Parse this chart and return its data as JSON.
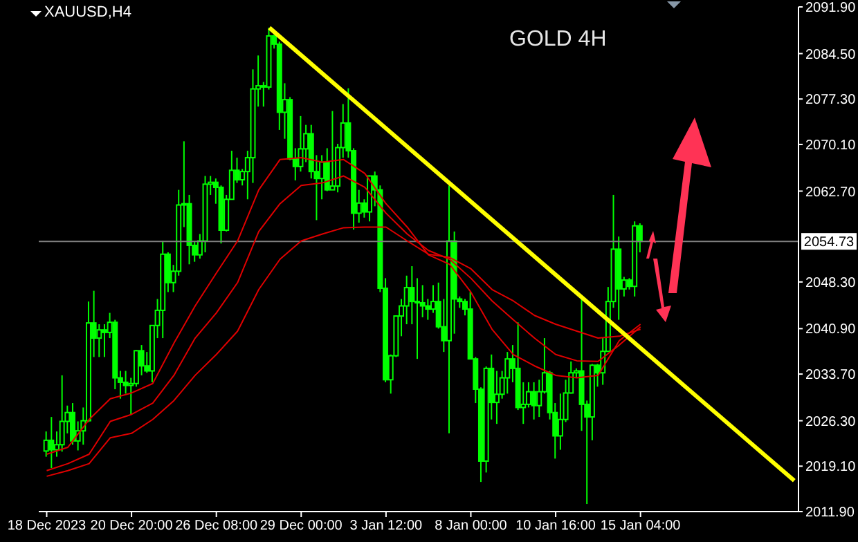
{
  "chart_data": {
    "type": "candlestick",
    "title": "GOLD 4H",
    "subtitle": "XAUUSD,H4",
    "color": "#00ff00",
    "categories": [
      "18 Dec 2023",
      null,
      null,
      null,
      null,
      null,
      null,
      null,
      null,
      null,
      null,
      null,
      null,
      null,
      null,
      null,
      "20 Dec 20:00",
      null,
      null,
      null,
      null,
      null,
      null,
      null,
      null,
      null,
      null,
      null,
      null,
      null,
      null,
      null,
      "26 Dec 08:00",
      null,
      null,
      null,
      null,
      null,
      null,
      null,
      null,
      null,
      null,
      null,
      null,
      null,
      null,
      null,
      "29 Dec 00:00",
      null,
      null,
      null,
      null,
      null,
      null,
      null,
      null,
      null,
      null,
      null,
      null,
      null,
      null,
      null,
      "3 Jan 12:00",
      null,
      null,
      null,
      null,
      null,
      null,
      null,
      null,
      null,
      null,
      null,
      null,
      null,
      null,
      null,
      "8 Jan 00:00",
      null,
      null,
      null,
      null,
      null,
      null,
      null,
      null,
      null,
      null,
      null,
      null,
      null,
      null,
      null,
      "10 Jan 16:00",
      null,
      null,
      null,
      null,
      null,
      null,
      null,
      null,
      null,
      null,
      null,
      null,
      null,
      null,
      null,
      "15 Jan 04:00",
      null,
      null,
      null,
      null,
      null,
      null,
      null,
      null,
      null,
      null,
      null,
      null,
      null,
      null,
      null,
      null,
      null,
      null,
      null,
      null,
      null,
      null,
      null,
      null,
      null,
      null,
      null,
      null,
      null
    ],
    "ohlc": [
      [
        2021.5,
        2024.6,
        2020.6,
        2023.2
      ],
      [
        2023.2,
        2026.9,
        2018.8,
        2021.7
      ],
      [
        2021.7,
        2024.6,
        2020.6,
        2022.5
      ],
      [
        2022.5,
        2033.5,
        2021.4,
        2026.2
      ],
      [
        2026.2,
        2028.7,
        2024.3,
        2027.6
      ],
      [
        2027.6,
        2029.1,
        2022.5,
        2023.1
      ],
      [
        2023.1,
        2026.2,
        2021.6,
        2024.7
      ],
      [
        2024.7,
        2028.4,
        2022.5,
        2026.3
      ],
      [
        2026.3,
        2045.2,
        2026.1,
        2041.8
      ],
      [
        2041.8,
        2046.9,
        2036.4,
        2039.4
      ],
      [
        2039.4,
        2041.6,
        2036.4,
        2040.7
      ],
      [
        2040.7,
        2041.6,
        2036.4,
        2040.3
      ],
      [
        2040.3,
        2043.4,
        2039.4,
        2041.9
      ],
      [
        2041.9,
        2042.3,
        2031.3,
        2033.1
      ],
      [
        2033.1,
        2034.2,
        2029.8,
        2032.4
      ],
      [
        2032.4,
        2034.2,
        2030.6,
        2031.9
      ],
      [
        2031.9,
        2033.1,
        2027.3,
        2032.2
      ],
      [
        2032.2,
        2037.5,
        2031.7,
        2037.4
      ],
      [
        2037.4,
        2038.3,
        2033.5,
        2035.0
      ],
      [
        2035.0,
        2037.2,
        2033.9,
        2034.2
      ],
      [
        2034.2,
        2041.4,
        2032.4,
        2041.4
      ],
      [
        2041.4,
        2045.6,
        2039.4,
        2043.8
      ],
      [
        2043.8,
        2054.8,
        2039.4,
        2052.7
      ],
      [
        2052.7,
        2053.0,
        2046.7,
        2048.2
      ],
      [
        2048.2,
        2051.0,
        2046.7,
        2050.0
      ],
      [
        2050.0,
        2062.9,
        2049.3,
        2060.5
      ],
      [
        2060.5,
        2070.6,
        2057.0,
        2060.7
      ],
      [
        2060.7,
        2062.1,
        2051.1,
        2054.1
      ],
      [
        2054.1,
        2054.8,
        2051.5,
        2052.6
      ],
      [
        2052.6,
        2055.9,
        2052.0,
        2054.8
      ],
      [
        2054.8,
        2065.1,
        2053.0,
        2063.8
      ],
      [
        2063.8,
        2065.1,
        2062.1,
        2064.1
      ],
      [
        2064.1,
        2064.7,
        2060.7,
        2063.3
      ],
      [
        2063.3,
        2063.6,
        2054.4,
        2056.5
      ],
      [
        2056.5,
        2062.1,
        2056.3,
        2061.4
      ],
      [
        2061.4,
        2069.1,
        2061.4,
        2066.0
      ],
      [
        2066.0,
        2068.0,
        2064.0,
        2064.5
      ],
      [
        2064.5,
        2066.2,
        2063.6,
        2065.8
      ],
      [
        2065.8,
        2069.1,
        2061.4,
        2068.0
      ],
      [
        2068.0,
        2082.0,
        2064.0,
        2078.9
      ],
      [
        2078.9,
        2084.2,
        2076.1,
        2079.4
      ],
      [
        2079.4,
        2080.0,
        2076.1,
        2079.2
      ],
      [
        2079.2,
        2088.6,
        2078.8,
        2087.3
      ],
      [
        2087.3,
        2087.5,
        2085.3,
        2086.0
      ],
      [
        2086.0,
        2086.4,
        2072.4,
        2075.2
      ],
      [
        2075.2,
        2079.8,
        2071.0,
        2077.2
      ],
      [
        2077.2,
        2077.6,
        2067.6,
        2067.8
      ],
      [
        2067.8,
        2069.5,
        2064.4,
        2066.6
      ],
      [
        2066.6,
        2074.6,
        2065.8,
        2069.4
      ],
      [
        2069.4,
        2073.2,
        2067.3,
        2071.8
      ],
      [
        2071.8,
        2073.2,
        2064.7,
        2065.8
      ],
      [
        2065.8,
        2068.4,
        2058.1,
        2064.7
      ],
      [
        2064.7,
        2068.4,
        2061.4,
        2067.3
      ],
      [
        2067.3,
        2069.5,
        2062.7,
        2062.9
      ],
      [
        2062.9,
        2075.4,
        2062.9,
        2063.5
      ],
      [
        2063.5,
        2070.2,
        2062.5,
        2069.6
      ],
      [
        2069.6,
        2076.5,
        2068.0,
        2073.5
      ],
      [
        2073.5,
        2079.0,
        2068.0,
        2069.1
      ],
      [
        2069.1,
        2069.5,
        2056.6,
        2059.2
      ],
      [
        2059.2,
        2062.9,
        2057.7,
        2060.8
      ],
      [
        2060.8,
        2061.4,
        2058.5,
        2059.4
      ],
      [
        2059.4,
        2065.2,
        2057.9,
        2065.1
      ],
      [
        2065.1,
        2065.8,
        2060.3,
        2062.9
      ],
      [
        2062.9,
        2063.6,
        2046.7,
        2047.3
      ],
      [
        2047.3,
        2048.9,
        2032.4,
        2032.8
      ],
      [
        2032.8,
        2036.8,
        2030.6,
        2036.6
      ],
      [
        2036.6,
        2043.0,
        2036.4,
        2042.9
      ],
      [
        2042.9,
        2045.6,
        2039.7,
        2044.5
      ],
      [
        2044.5,
        2049.3,
        2041.6,
        2047.4
      ],
      [
        2047.4,
        2050.8,
        2041.6,
        2045.2
      ],
      [
        2045.2,
        2048.9,
        2036.1,
        2045.0
      ],
      [
        2045.0,
        2047.8,
        2042.7,
        2044.5
      ],
      [
        2044.5,
        2045.6,
        2042.3,
        2044.0
      ],
      [
        2044.0,
        2047.8,
        2043.4,
        2045.2
      ],
      [
        2045.2,
        2048.2,
        2040.9,
        2041.2
      ],
      [
        2041.2,
        2045.6,
        2037.2,
        2039.0
      ],
      [
        2039.0,
        2063.6,
        2024.3,
        2054.8
      ],
      [
        2054.8,
        2056.3,
        2040.1,
        2045.6
      ],
      [
        2045.6,
        2046.0,
        2044.2,
        2045.2
      ],
      [
        2045.2,
        2045.6,
        2043.0,
        2044.0
      ],
      [
        2044.0,
        2046.7,
        2036.1,
        2036.1
      ],
      [
        2036.1,
        2036.4,
        2029.1,
        2031.3
      ],
      [
        2031.3,
        2031.6,
        2016.6,
        2019.9
      ],
      [
        2019.9,
        2034.9,
        2018.1,
        2034.6
      ],
      [
        2034.6,
        2036.8,
        2026.5,
        2029.2
      ],
      [
        2029.2,
        2034.2,
        2025.8,
        2030.5
      ],
      [
        2030.5,
        2034.2,
        2029.8,
        2033.1
      ],
      [
        2033.1,
        2037.2,
        2030.6,
        2036.1
      ],
      [
        2036.1,
        2038.3,
        2032.4,
        2034.6
      ],
      [
        2034.6,
        2041.9,
        2028.0,
        2028.4
      ],
      [
        2028.4,
        2032.4,
        2025.8,
        2028.9
      ],
      [
        2028.9,
        2032.4,
        2028.4,
        2030.9
      ],
      [
        2030.9,
        2032.4,
        2026.5,
        2028.7
      ],
      [
        2028.7,
        2032.8,
        2026.9,
        2030.9
      ],
      [
        2030.9,
        2039.4,
        2030.6,
        2033.9
      ],
      [
        2033.9,
        2034.2,
        2026.5,
        2027.6
      ],
      [
        2027.6,
        2029.1,
        2020.3,
        2023.9
      ],
      [
        2023.9,
        2030.6,
        2021.7,
        2026.5
      ],
      [
        2026.5,
        2032.8,
        2026.1,
        2030.7
      ],
      [
        2030.7,
        2035.7,
        2030.6,
        2033.9
      ],
      [
        2033.9,
        2034.6,
        2033.1,
        2034.2
      ],
      [
        2034.2,
        2046.0,
        2024.7,
        2028.9
      ],
      [
        2028.9,
        2029.5,
        2013.1,
        2026.9
      ],
      [
        2026.9,
        2035.3,
        2023.2,
        2035.1
      ],
      [
        2035.1,
        2035.3,
        2031.7,
        2033.9
      ],
      [
        2033.9,
        2039.4,
        2032.0,
        2037.3
      ],
      [
        2037.3,
        2047.5,
        2037.2,
        2045.2
      ],
      [
        2045.2,
        2062.1,
        2044.2,
        2053.5
      ],
      [
        2053.5,
        2055.5,
        2042.3,
        2047.2
      ],
      [
        2047.2,
        2049.1,
        2046.0,
        2048.6
      ],
      [
        2048.6,
        2048.9,
        2047.1,
        2047.6
      ],
      [
        2047.6,
        2057.9,
        2046.0,
        2057.2
      ],
      [
        2057.2,
        2057.6,
        2053.0,
        2054.73
      ],
      null,
      null,
      null,
      null,
      null,
      null,
      null,
      null,
      null,
      null,
      null,
      null,
      null,
      null,
      null,
      null,
      null,
      null,
      null,
      null,
      null,
      null,
      null,
      null,
      null,
      null,
      null,
      null,
      null
    ],
    "series": [
      {
        "type": "line",
        "color": "#e00000",
        "values": [
          2021.0,
          null,
          null,
          null,
          2022.1,
          null,
          null,
          null,
          2026.5,
          null,
          null,
          null,
          2029.8,
          null,
          null,
          null,
          2030.7,
          null,
          null,
          null,
          2032.2,
          null,
          null,
          null,
          2038.6,
          null,
          null,
          null,
          2044.5,
          null,
          null,
          null,
          2049.7,
          null,
          null,
          null,
          2054.8,
          null,
          null,
          null,
          2062.9,
          null,
          null,
          null,
          2067.7,
          null,
          null,
          null,
          2068.0,
          null,
          null,
          null,
          2067.3,
          null,
          null,
          null,
          2067.7,
          null,
          null,
          null,
          2065.5,
          null,
          null,
          null,
          2060.7,
          null,
          null,
          null,
          2057.0,
          null,
          null,
          null,
          2052.6,
          null,
          null,
          null,
          2051.1,
          null,
          null,
          null,
          2046.7,
          null,
          null,
          null,
          2040.8,
          null,
          null,
          null,
          2036.8,
          null,
          null,
          null,
          2035.0,
          null,
          null,
          null,
          2033.5,
          null,
          null,
          null,
          2033.1,
          null,
          null,
          null,
          2033.5,
          null,
          null,
          null,
          2039.0,
          null,
          null,
          null,
          2041.6,
          null,
          null,
          null,
          null,
          null,
          null,
          null,
          null,
          null,
          null,
          null,
          null,
          null,
          null,
          null,
          null,
          null,
          null,
          null,
          null,
          null,
          null,
          null,
          null,
          null,
          null,
          null,
          null,
          null
        ]
      },
      {
        "type": "line",
        "color": "#e00000",
        "values": [
          2018.4,
          null,
          null,
          null,
          2019.5,
          null,
          null,
          null,
          2021.0,
          null,
          null,
          null,
          2026.2,
          null,
          null,
          null,
          2027.3,
          null,
          null,
          null,
          2029.1,
          null,
          null,
          null,
          2033.5,
          null,
          null,
          null,
          2039.4,
          null,
          null,
          null,
          2043.4,
          null,
          null,
          null,
          2048.2,
          null,
          null,
          null,
          2056.3,
          null,
          null,
          null,
          2060.7,
          null,
          null,
          null,
          2063.6,
          null,
          null,
          null,
          2064.0,
          null,
          null,
          null,
          2065.1,
          null,
          null,
          null,
          2063.3,
          null,
          null,
          null,
          2059.2,
          null,
          null,
          null,
          2055.9,
          null,
          null,
          null,
          2053.3,
          null,
          null,
          null,
          2051.9,
          null,
          null,
          null,
          2048.9,
          null,
          null,
          null,
          2045.3,
          null,
          null,
          null,
          2042.3,
          null,
          null,
          null,
          2039.4,
          null,
          null,
          null,
          2036.8,
          null,
          null,
          null,
          2035.8,
          null,
          null,
          null,
          2035.7,
          null,
          null,
          null,
          2038.3,
          null,
          null,
          null,
          2041.2,
          null,
          null,
          null,
          null,
          null,
          null,
          null,
          null,
          null,
          null,
          null,
          null,
          null,
          null,
          null,
          null,
          null,
          null,
          null,
          null,
          null,
          null,
          null,
          null,
          null,
          null,
          null,
          null,
          null
        ]
      },
      {
        "type": "line",
        "color": "#e00000",
        "values": [
          2017.5,
          null,
          null,
          null,
          2018.4,
          null,
          null,
          null,
          2019.5,
          null,
          null,
          null,
          2023.6,
          null,
          null,
          null,
          2024.3,
          null,
          null,
          null,
          2026.5,
          null,
          null,
          null,
          2029.5,
          null,
          null,
          null,
          2033.5,
          null,
          null,
          null,
          2036.8,
          null,
          null,
          null,
          2040.5,
          null,
          null,
          null,
          2047.1,
          null,
          null,
          null,
          2051.9,
          null,
          null,
          null,
          2054.8,
          null,
          null,
          null,
          2055.9,
          null,
          null,
          null,
          2056.9,
          null,
          null,
          null,
          2057.0,
          null,
          null,
          null,
          2057.0,
          null,
          null,
          null,
          2054.8,
          null,
          null,
          null,
          2052.7,
          null,
          null,
          null,
          2052.2,
          null,
          null,
          null,
          2050.4,
          null,
          null,
          null,
          2047.1,
          null,
          null,
          null,
          2045.3,
          null,
          null,
          null,
          2043.0,
          null,
          null,
          null,
          2041.6,
          null,
          null,
          null,
          2040.5,
          null,
          null,
          null,
          2039.4,
          null,
          null,
          null,
          2039.7,
          null,
          null,
          null,
          2040.8,
          null,
          null,
          null,
          null,
          null,
          null,
          null,
          null,
          null,
          null,
          null,
          null,
          null,
          null,
          null,
          null,
          null,
          null,
          null,
          null,
          null,
          null,
          null,
          null,
          null,
          null,
          null,
          null,
          null
        ]
      },
      {
        "type": "line",
        "color": "#ffff00",
        "values": [
          null,
          null,
          null,
          null,
          null,
          null,
          null,
          null,
          null,
          null,
          null,
          null,
          null,
          null,
          null,
          null,
          null,
          null,
          null,
          null,
          null,
          null,
          null,
          null,
          null,
          null,
          null,
          null,
          null,
          null,
          null,
          null,
          null,
          null,
          null,
          null,
          null,
          null,
          null,
          null,
          null,
          null,
          2088.6,
          null,
          null,
          null,
          null,
          null,
          null,
          null,
          null,
          null,
          null,
          null,
          null,
          null,
          null,
          null,
          null,
          null,
          null,
          null,
          null,
          null,
          null,
          null,
          null,
          null,
          null,
          null,
          null,
          null,
          null,
          null,
          null,
          null,
          null,
          null,
          null,
          null,
          null,
          null,
          null,
          null,
          null,
          null,
          null,
          null,
          null,
          null,
          null,
          null,
          null,
          null,
          null,
          null,
          null,
          null,
          null,
          null,
          null,
          null,
          null,
          null,
          null,
          null,
          null,
          null,
          null,
          null,
          null,
          null,
          null,
          null,
          null,
          null,
          null,
          null,
          null,
          null,
          null,
          null,
          null,
          null,
          null,
          null,
          null,
          null,
          null,
          null,
          null,
          null,
          null,
          null,
          null,
          null,
          null,
          null,
          null,
          null,
          null,
          2016.8
        ]
      }
    ],
    "ylim": [
      2011.9,
      2091.9
    ],
    "yticks": [
      {
        "value": 2011.9,
        "label": "2011.90"
      },
      {
        "value": 2019.1,
        "label": "2019.10"
      },
      {
        "value": 2026.3,
        "label": "2026.30"
      },
      {
        "value": 2033.7,
        "label": "2033.70"
      },
      {
        "value": 2040.9,
        "label": "2040.90"
      },
      {
        "value": 2048.3,
        "label": "2048.30"
      },
      {
        "value": 2062.7,
        "label": "2062.70"
      },
      {
        "value": 2070.1,
        "label": "2070.10"
      },
      {
        "value": 2077.3,
        "label": "2077.30"
      },
      {
        "value": 2084.5,
        "label": "2084.50"
      },
      {
        "value": 2091.9,
        "label": "2091.90"
      }
    ],
    "ref_lines": [
      {
        "axis": "y",
        "value": 2054.73,
        "label": "2054.73",
        "color": "#808080"
      }
    ]
  }
}
